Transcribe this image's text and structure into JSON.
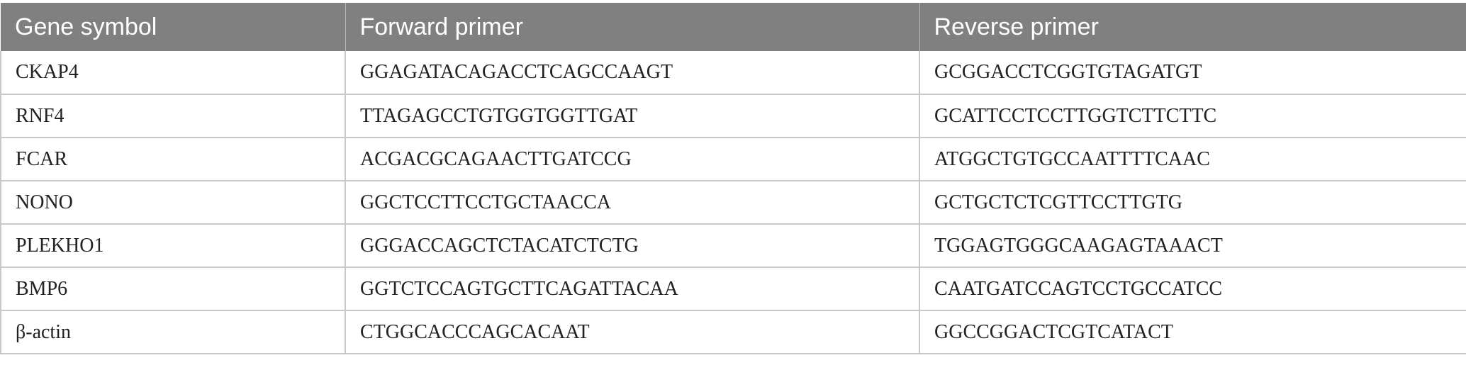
{
  "table": {
    "headers": [
      "Gene symbol",
      "Forward primer",
      "Reverse primer"
    ],
    "rows": [
      [
        "CKAP4",
        "GGAGATACAGACCTCAGCCAAGT",
        "GCGGACCTCGGTGTAGATGT"
      ],
      [
        "RNF4",
        "TTAGAGCCTGTGGTGGTTGAT",
        "GCATTCCTCCTTGGTCTTCTTC"
      ],
      [
        "FCAR",
        "ACGACGCAGAACTTGATCCG",
        "ATGGCTGTGCCAATTTTCAAC"
      ],
      [
        "NONO",
        "GGCTCCTTCCTGCTAACCA",
        "GCTGCTCTCGTTCCTTGTG"
      ],
      [
        "PLEKHO1",
        "GGGACCAGCTCTACATCTCTG",
        "TGGAGTGGGCAAGAGTAAACT"
      ],
      [
        "BMP6",
        "GGTCTCCAGTGCTTCAGATTACAA",
        "CAATGATCCAGTCCTGCCATCC"
      ],
      [
        "β-actin",
        "CTGGCACCCAGCACAAT",
        "GGCCGGACTCGTCATACT"
      ]
    ]
  },
  "colors": {
    "header_bg": "#808080",
    "header_text": "#ffffff",
    "border": "#c8c8c8"
  }
}
